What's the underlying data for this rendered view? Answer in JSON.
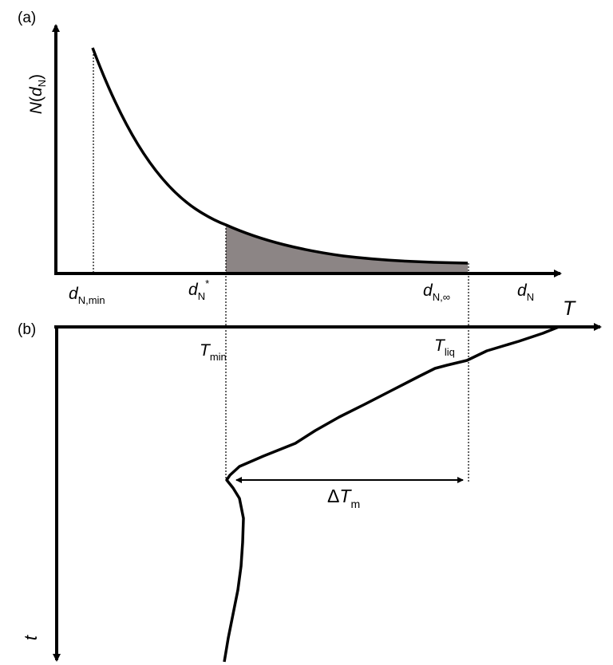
{
  "panel_a": {
    "tag": "(a)",
    "y_axis": {
      "symbol": "N",
      "paren_open": "(",
      "var": "d",
      "sub": "N",
      "paren_close": ")"
    },
    "x_ticks": [
      {
        "symbol": "d",
        "sub": "N,min",
        "sup": ""
      },
      {
        "symbol": "d",
        "sub": "N",
        "sup": "*"
      },
      {
        "symbol": "d",
        "sub": "N,∞",
        "sup": ""
      }
    ],
    "x_axis_label": {
      "symbol": "d",
      "sub": "N"
    },
    "curve_fill_color": "#8c8585"
  },
  "panel_b": {
    "tag": "(b)",
    "x_axis_label": "T",
    "y_axis_label": "t",
    "t_min": {
      "symbol": "T",
      "sub": "min"
    },
    "t_liq": {
      "symbol": "T",
      "sub": "liq"
    },
    "delta": {
      "prefix": "Δ",
      "symbol": "T",
      "sub": "m"
    }
  }
}
